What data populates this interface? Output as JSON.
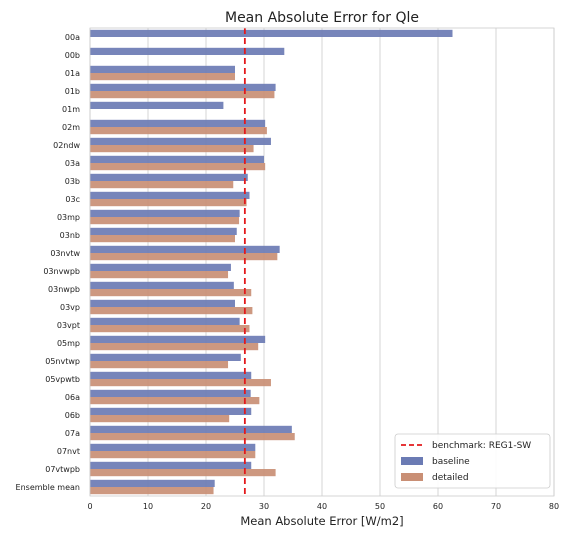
{
  "chart_data": {
    "type": "bar",
    "orientation": "horizontal",
    "title": "Mean Absolute Error for Qle",
    "xlabel": "Mean Absolute Error [W/m2]",
    "ylabel": "",
    "xlim": [
      0,
      80
    ],
    "xticks": [
      0,
      10,
      20,
      30,
      40,
      50,
      60,
      70,
      80
    ],
    "grid": "vertical",
    "legend_position": "bottom-right",
    "categories": [
      "00a",
      "00b",
      "01a",
      "01b",
      "01m",
      "02m",
      "02ndw",
      "03a",
      "03b",
      "03c",
      "03mp",
      "03nb",
      "03nvtw",
      "03nvwpb",
      "03nwpb",
      "03vp",
      "03vpt",
      "05mp",
      "05nvtwp",
      "05vpwtb",
      "06a",
      "06b",
      "07a",
      "07nvt",
      "07vtwpb",
      "Ensemble mean"
    ],
    "series": [
      {
        "name": "baseline",
        "color": "#6b7bb4",
        "values": [
          62.5,
          33.5,
          25.0,
          32.0,
          23.0,
          30.2,
          31.2,
          30.0,
          27.2,
          27.5,
          25.8,
          25.3,
          32.7,
          24.3,
          24.8,
          25.0,
          25.8,
          30.2,
          26.0,
          27.8,
          27.7,
          27.8,
          34.8,
          28.5,
          27.8,
          21.5
        ]
      },
      {
        "name": "detailed",
        "color": "#c98f75",
        "values": [
          null,
          null,
          25.0,
          31.8,
          null,
          30.5,
          28.2,
          30.2,
          24.7,
          27.0,
          25.7,
          25.0,
          32.3,
          23.8,
          27.8,
          28.0,
          27.5,
          29.0,
          23.8,
          31.2,
          29.2,
          24.0,
          35.3,
          28.5,
          32.0,
          21.3
        ]
      }
    ],
    "reference_line": {
      "label": "benchmark: REG1-SW",
      "value": 26.7,
      "color": "#e31a1c",
      "style": "dashed"
    }
  }
}
